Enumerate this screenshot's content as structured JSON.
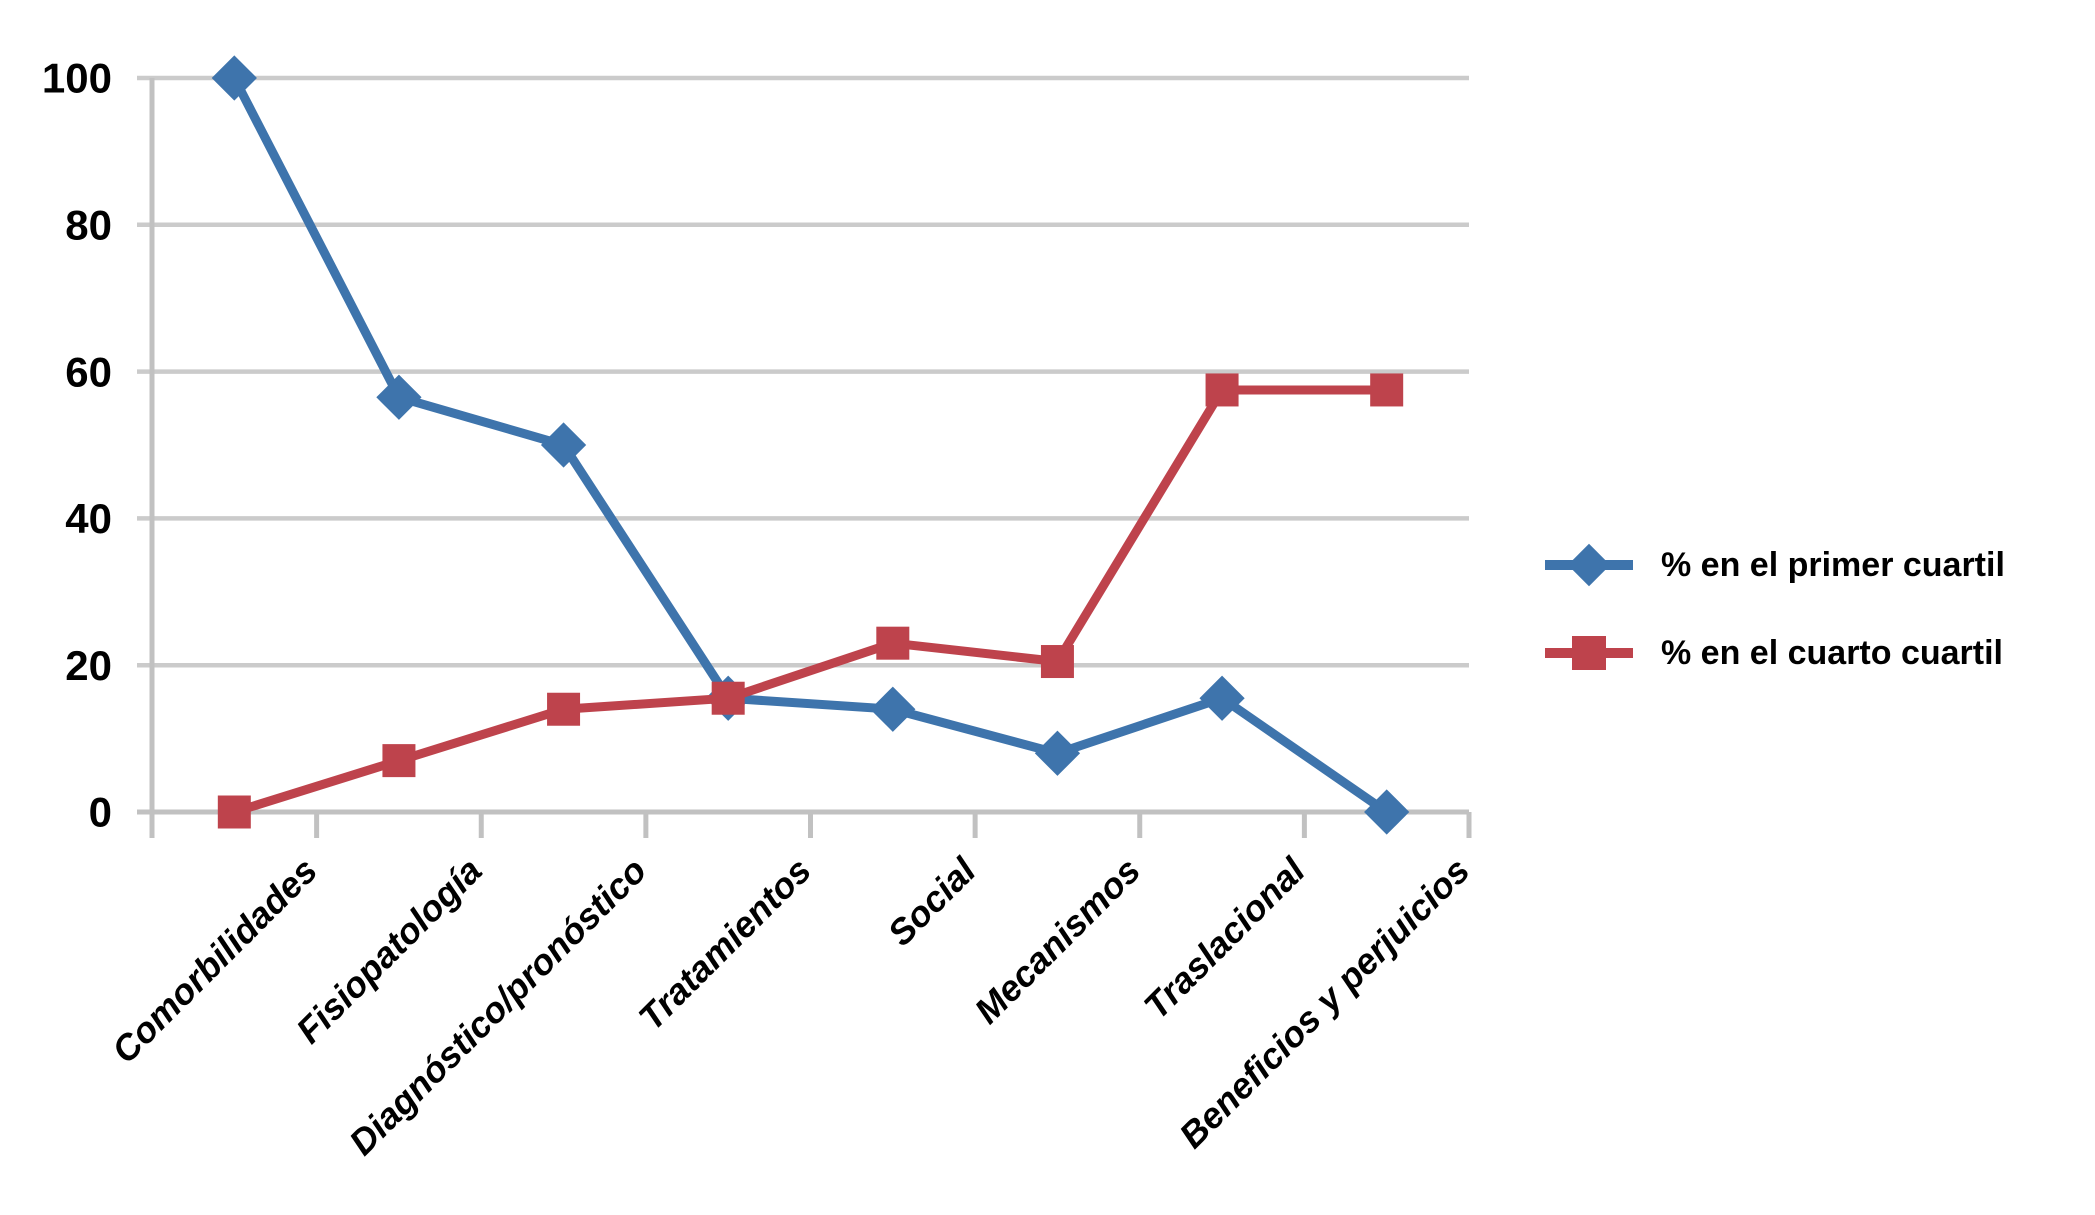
{
  "figure": {
    "background": "#FFFFFF",
    "description": "Line chart comparing percentage of topics in first vs fourth quartile across research areas"
  },
  "chart_data": {
    "type": "line",
    "categories": [
      "Comorbilidades",
      "Fisiopatología",
      "Diagnóstico/pronóstico",
      "Tratamientos",
      "Social",
      "Mecanismos",
      "Traslacional",
      "Beneficios y perjuicios"
    ],
    "series": [
      {
        "name": "% en el primer cuartil",
        "marker": "diamond",
        "color": "#3E74AC",
        "values": [
          100,
          56.5,
          50,
          15.5,
          14,
          8,
          15.5,
          0
        ]
      },
      {
        "name": "% en el cuarto cuartil",
        "marker": "square",
        "color": "#BE434C",
        "values": [
          0,
          7,
          14,
          15.5,
          23,
          20.5,
          57.5,
          57.5
        ]
      }
    ],
    "title": "",
    "xlabel": "",
    "ylabel": "",
    "ylim": [
      0,
      100
    ],
    "yticks": [
      0,
      20,
      40,
      60,
      80,
      100
    ],
    "grid": "horizontal",
    "legend_position": "right-middle",
    "colors": {
      "gridline": "#CBCBCB",
      "axis": "#C1C1C1",
      "label_text": "#000000"
    }
  }
}
